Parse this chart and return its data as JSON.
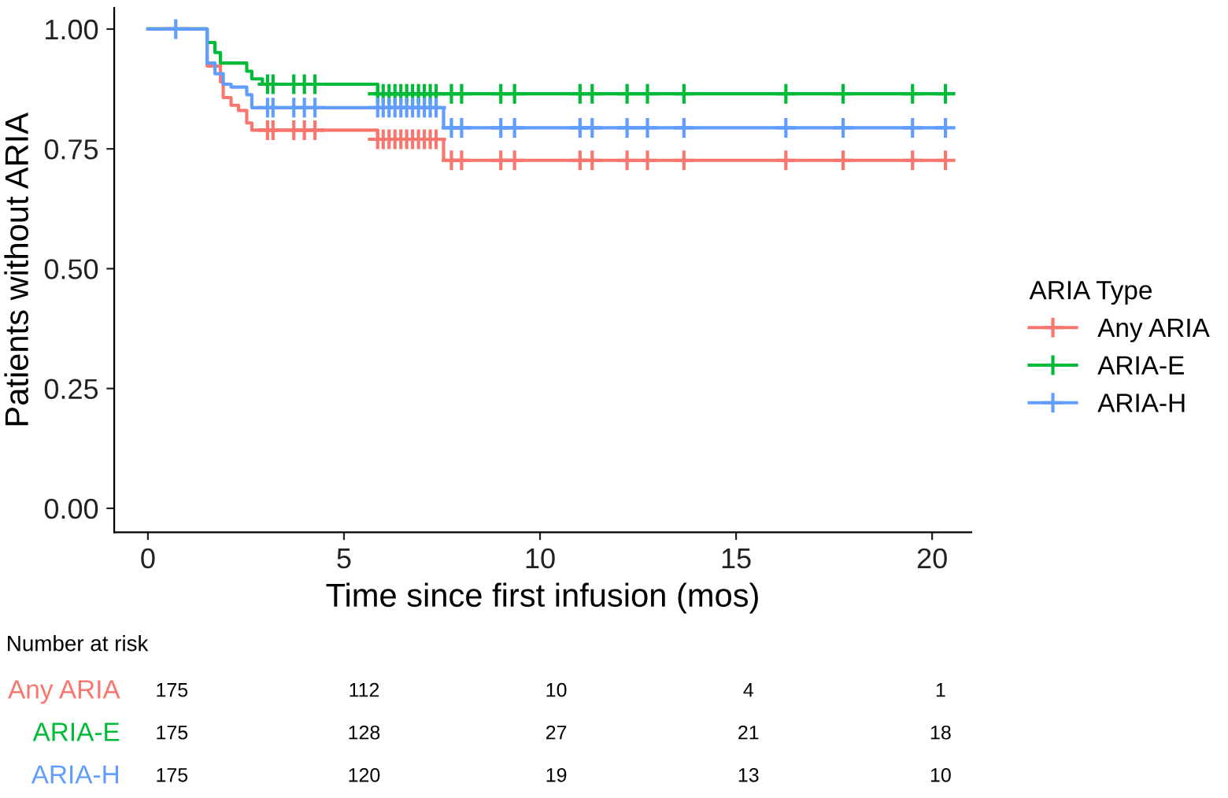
{
  "chart_data": [
    {
      "type": "step",
      "xlabel": "Time since first infusion (mos)",
      "ylabel": "Patients without ARIA",
      "legend_title": "ARIA Type",
      "legend": "right",
      "grid": false,
      "xlim": [
        -0.86,
        21.0
      ],
      "xticks": [
        0,
        5,
        10,
        15,
        20
      ],
      "ylim": [
        -0.05,
        1.044
      ],
      "yticks": [
        {
          "value": 0,
          "label": "0.00"
        },
        {
          "value": 0.25,
          "label": "0.25"
        },
        {
          "value": 0.5,
          "label": "0.50"
        },
        {
          "value": 0.75,
          "label": "0.75"
        },
        {
          "value": 1,
          "label": "1.00"
        }
      ],
      "series": [
        {
          "type": "step",
          "color": "#f8766d",
          "x": [
            0,
            1.51,
            1.85,
            1.92,
            2.12,
            2.31,
            2.52,
            2.65,
            5.86,
            7.54,
            20.34
          ],
          "values": [
            1,
            0.923,
            0.89,
            0.857,
            0.841,
            0.83,
            0.804,
            0.789,
            0.77,
            0.726,
            0.726
          ]
        },
        {
          "type": "step",
          "color": "#00ba38",
          "x": [
            0,
            1.51,
            1.71,
            1.85,
            2.52,
            2.65,
            2.92,
            5.86,
            20.34
          ],
          "values": [
            1,
            0.972,
            0.951,
            0.929,
            0.912,
            0.896,
            0.885,
            0.865,
            0.865
          ]
        },
        {
          "type": "step",
          "color": "#619cff",
          "x": [
            0,
            1.51,
            1.71,
            1.92,
            2.12,
            2.52,
            2.65,
            7.54,
            20.34
          ],
          "values": [
            1,
            0.929,
            0.907,
            0.885,
            0.879,
            0.863,
            0.836,
            0.794,
            0.794
          ]
        },
        {
          "type": "scatter",
          "name": "Any ARIA",
          "color": "#f8766d",
          "marker": "cross",
          "x": [
            3.05,
            3.19,
            3.72,
            3.99,
            4.26,
            5.86,
            6.0,
            6.15,
            6.3,
            6.45,
            6.6,
            6.75,
            6.9,
            7.05,
            7.2,
            7.35,
            7.74,
            8.0,
            9.0,
            9.35,
            11.02,
            11.33,
            12.22,
            12.74,
            13.67,
            16.27,
            17.73,
            19.5,
            20.34
          ],
          "values": [
            0.789,
            0.789,
            0.789,
            0.789,
            0.789,
            0.77,
            0.77,
            0.77,
            0.77,
            0.77,
            0.77,
            0.77,
            0.77,
            0.77,
            0.77,
            0.77,
            0.726,
            0.726,
            0.726,
            0.726,
            0.726,
            0.726,
            0.726,
            0.726,
            0.726,
            0.726,
            0.726,
            0.726,
            0.726
          ]
        },
        {
          "type": "scatter",
          "name": "ARIA-E",
          "color": "#00ba38",
          "marker": "cross",
          "x": [
            3.05,
            3.19,
            3.72,
            3.99,
            4.26,
            5.86,
            6.0,
            6.15,
            6.3,
            6.45,
            6.6,
            6.75,
            6.9,
            7.05,
            7.2,
            7.35,
            7.74,
            8.0,
            9.0,
            9.35,
            11.02,
            11.33,
            12.22,
            12.74,
            13.67,
            16.27,
            17.73,
            19.5,
            20.34
          ],
          "values": [
            0.885,
            0.885,
            0.885,
            0.885,
            0.885,
            0.865,
            0.865,
            0.865,
            0.865,
            0.865,
            0.865,
            0.865,
            0.865,
            0.865,
            0.865,
            0.865,
            0.865,
            0.865,
            0.865,
            0.865,
            0.865,
            0.865,
            0.865,
            0.865,
            0.865,
            0.865,
            0.865,
            0.865,
            0.865
          ]
        },
        {
          "type": "scatter",
          "name": "ARIA-H",
          "color": "#619cff",
          "marker": "cross",
          "x": [
            0.71,
            3.05,
            3.19,
            3.72,
            3.99,
            4.26,
            5.86,
            6.0,
            6.15,
            6.3,
            6.45,
            6.6,
            6.75,
            6.9,
            7.05,
            7.2,
            7.35,
            7.74,
            8.0,
            9.0,
            9.35,
            11.02,
            11.33,
            12.22,
            12.74,
            13.67,
            16.27,
            17.73,
            19.5,
            20.34
          ],
          "values": [
            1,
            0.836,
            0.836,
            0.836,
            0.836,
            0.836,
            0.836,
            0.836,
            0.836,
            0.836,
            0.836,
            0.836,
            0.836,
            0.836,
            0.836,
            0.836,
            0.836,
            0.794,
            0.794,
            0.794,
            0.794,
            0.794,
            0.794,
            0.794,
            0.794,
            0.794,
            0.794,
            0.794,
            0.794,
            0.794
          ]
        }
      ]
    },
    {
      "type": "heatmap",
      "title": "Number at risk",
      "categories": [
        null,
        null,
        null,
        null,
        null
      ],
      "data_labels": true,
      "y_categories": [
        "Any ARIA",
        "ARIA-E",
        "ARIA-H"
      ],
      "colors": [
        "#f8766d",
        "#00ba38",
        "#619cff"
      ],
      "cells": [
        [
          175,
          112,
          10,
          4,
          1
        ],
        [
          175,
          128,
          27,
          21,
          18
        ],
        [
          175,
          120,
          19,
          13,
          10
        ]
      ]
    }
  ]
}
